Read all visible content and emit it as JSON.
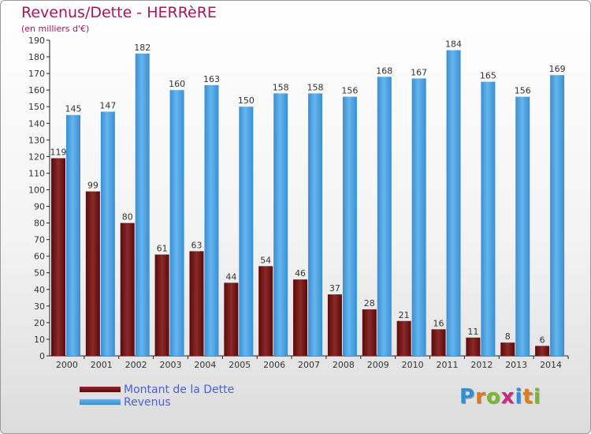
{
  "header": {
    "title": "Revenus/Dette - HERRèRE",
    "subtitle": "(en milliers d'€)"
  },
  "chart_data": {
    "type": "bar",
    "title": "Revenus/Dette - HERRèRE",
    "subtitle": "(en milliers d'€)",
    "categories": [
      "2000",
      "2001",
      "2002",
      "2003",
      "2004",
      "2005",
      "2006",
      "2007",
      "2008",
      "2009",
      "2010",
      "2011",
      "2012",
      "2013",
      "2014"
    ],
    "series": [
      {
        "name": "Montant de la Dette",
        "color": "#6b1010",
        "values": [
          119,
          99,
          80,
          61,
          63,
          44,
          54,
          46,
          37,
          28,
          21,
          16,
          11,
          8,
          6
        ]
      },
      {
        "name": "Revenus",
        "color": "#4ea3e0",
        "values": [
          145,
          147,
          182,
          160,
          163,
          150,
          158,
          158,
          156,
          168,
          167,
          184,
          165,
          156,
          169
        ]
      }
    ],
    "yticks": [
      0,
      10,
      20,
      30,
      40,
      50,
      60,
      70,
      80,
      90,
      100,
      110,
      120,
      130,
      140,
      150,
      160,
      170,
      180,
      190
    ],
    "ylim": [
      0,
      190
    ],
    "grid": false,
    "legend_position": "bottom-left"
  },
  "legend": {
    "items": [
      {
        "label": "Montant de la Dette",
        "color": "#6b1010"
      },
      {
        "label": "Revenus",
        "color": "#4ea3e0"
      }
    ]
  },
  "logo": {
    "letters": [
      "P",
      "r",
      "o",
      "x",
      "i",
      "t",
      "i"
    ],
    "colors": [
      "#2f8fd8",
      "#e07b1a",
      "#7ab82e",
      "#c9297f",
      "#2f8fd8",
      "#e07b1a",
      "#7ab82e"
    ]
  }
}
